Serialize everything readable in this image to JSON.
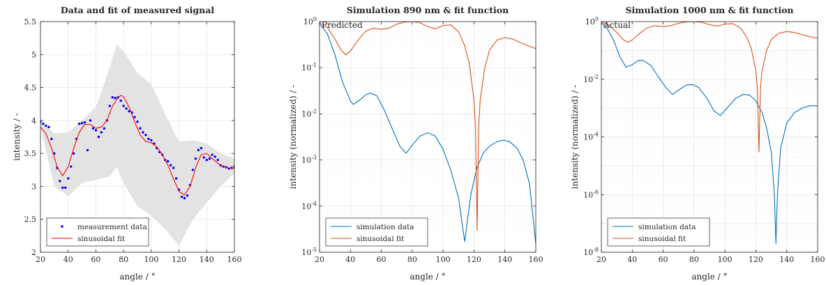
{
  "chart_data": [
    {
      "type": "scatter",
      "title": "Data and fit of measured signal",
      "xlabel": "angle / °",
      "ylabel": "intensity / -",
      "xlim": [
        20,
        160
      ],
      "ylim": [
        2,
        5.5
      ],
      "xticks": [
        "20",
        "40",
        "60",
        "80",
        "100",
        "120",
        "140",
        "160"
      ],
      "yticks": [
        "2",
        "2.5",
        "3",
        "3.5",
        "4",
        "4.5",
        "5",
        "5.5"
      ],
      "grid": true,
      "legend_position": "bottom-left",
      "series": [
        {
          "name": "measurement data",
          "marker": "dot",
          "color": "#0000ff",
          "x": [
            20,
            22,
            24,
            26,
            28,
            30,
            32,
            34,
            36,
            38,
            40,
            42,
            44,
            46,
            48,
            50,
            52,
            54,
            56,
            58,
            60,
            62,
            64,
            66,
            68,
            70,
            72,
            74,
            76,
            78,
            80,
            82,
            84,
            86,
            88,
            90,
            92,
            94,
            96,
            98,
            100,
            102,
            104,
            106,
            108,
            110,
            112,
            114,
            116,
            118,
            120,
            122,
            124,
            126,
            128,
            130,
            132,
            134,
            136,
            138,
            140,
            142,
            144,
            146,
            148,
            150,
            152,
            154,
            156,
            158,
            160
          ],
          "y": [
            3.98,
            3.95,
            3.92,
            3.9,
            3.72,
            3.5,
            3.28,
            3.08,
            2.98,
            2.98,
            3.12,
            3.3,
            3.5,
            3.72,
            3.95,
            3.96,
            3.97,
            3.55,
            4.0,
            3.88,
            3.85,
            3.75,
            3.82,
            3.88,
            4.0,
            4.22,
            4.35,
            4.34,
            4.35,
            4.3,
            4.22,
            4.18,
            4.14,
            4.12,
            4.05,
            3.98,
            3.88,
            3.82,
            3.78,
            3.72,
            3.7,
            3.65,
            3.58,
            3.52,
            3.48,
            3.4,
            3.38,
            3.32,
            3.28,
            3.12,
            2.95,
            2.84,
            2.82,
            2.86,
            3.02,
            3.25,
            3.42,
            3.55,
            3.58,
            3.44,
            3.4,
            3.42,
            3.48,
            3.45,
            3.4,
            3.32,
            3.3,
            3.29,
            3.27,
            3.28,
            3.3
          ]
        },
        {
          "name": "sinusoidal fit",
          "color": "#ff0000",
          "x": [
            20,
            24,
            28,
            32,
            36,
            40,
            44,
            48,
            52,
            56,
            60,
            64,
            68,
            72,
            76,
            78,
            80,
            84,
            88,
            92,
            96,
            100,
            104,
            108,
            112,
            116,
            120,
            124,
            128,
            132,
            136,
            140,
            144,
            148,
            152,
            156,
            160
          ],
          "y": [
            3.9,
            3.8,
            3.58,
            3.3,
            3.16,
            3.3,
            3.58,
            3.82,
            3.94,
            3.94,
            3.88,
            3.9,
            4.0,
            4.22,
            4.35,
            4.38,
            4.36,
            4.2,
            3.98,
            3.78,
            3.68,
            3.66,
            3.6,
            3.48,
            3.32,
            3.12,
            2.92,
            2.87,
            3.0,
            3.28,
            3.48,
            3.5,
            3.42,
            3.35,
            3.3,
            3.28,
            3.27
          ]
        }
      ],
      "band": {
        "color": "#e3e3e3",
        "x": [
          20,
          30,
          40,
          50,
          60,
          70,
          75,
          80,
          90,
          100,
          110,
          120,
          130,
          140,
          150,
          160
        ],
        "upper": [
          4.0,
          3.8,
          3.82,
          4.0,
          4.2,
          4.8,
          5.15,
          5.05,
          4.72,
          4.55,
          4.1,
          3.68,
          3.7,
          3.65,
          3.5,
          3.42
        ],
        "lower": [
          3.9,
          3.0,
          2.85,
          3.05,
          3.1,
          3.15,
          3.3,
          3.05,
          2.7,
          2.55,
          2.35,
          2.1,
          2.5,
          2.75,
          3.0,
          3.2
        ]
      }
    },
    {
      "type": "line",
      "title": "Simulation 890 nm & fit function",
      "annotation": "Predicted",
      "xlabel": "angle / °",
      "ylabel": "intensity (normalized) / -",
      "yscale": "log",
      "xlim": [
        20,
        160
      ],
      "ylim": [
        1e-05,
        1
      ],
      "xticks": [
        "20",
        "40",
        "60",
        "80",
        "100",
        "120",
        "140",
        "160"
      ],
      "ytick_exponents": [
        "-5",
        "-4",
        "-3",
        "-2",
        "-1",
        "0"
      ],
      "grid": true,
      "legend_position": "bottom-left",
      "series": [
        {
          "name": "simulation data",
          "color": "#0072bd",
          "x": [
            20,
            25,
            30,
            35,
            40,
            42,
            46,
            50,
            53,
            57,
            62,
            67,
            72,
            76,
            80,
            85,
            90,
            95,
            100,
            105,
            110,
            114,
            118,
            122,
            126,
            130,
            135,
            139,
            143,
            148,
            152,
            156,
            160
          ],
          "y": [
            0.9,
            0.55,
            0.19,
            0.048,
            0.019,
            0.016,
            0.02,
            0.026,
            0.028,
            0.025,
            0.012,
            0.0048,
            0.002,
            0.0014,
            0.0021,
            0.0033,
            0.0039,
            0.0033,
            0.0017,
            0.0006,
            0.00015,
            1.7e-05,
            0.00018,
            0.0007,
            0.0014,
            0.002,
            0.0025,
            0.0027,
            0.0025,
            0.0018,
            0.00095,
            0.0003,
            1.5e-05
          ]
        },
        {
          "name": "sinusoidal fit",
          "color": "#d95319",
          "x": [
            20,
            25,
            30,
            34,
            37,
            40,
            45,
            50,
            55,
            60,
            65,
            70,
            75,
            80,
            85,
            90,
            95,
            100,
            105,
            110,
            114,
            117,
            120,
            121,
            122,
            123,
            124,
            127,
            130,
            135,
            140,
            145,
            150,
            155,
            160
          ],
          "y": [
            0.95,
            0.75,
            0.42,
            0.24,
            0.19,
            0.23,
            0.4,
            0.62,
            0.72,
            0.68,
            0.72,
            0.88,
            0.98,
            1.0,
            0.95,
            0.78,
            0.7,
            0.82,
            0.85,
            0.6,
            0.3,
            0.12,
            0.02,
            0.005,
            3e-05,
            0.005,
            0.02,
            0.1,
            0.24,
            0.4,
            0.45,
            0.42,
            0.35,
            0.3,
            0.26
          ]
        }
      ]
    },
    {
      "type": "line",
      "title": "Simulation 1000 nm & fit function",
      "annotation": "Actual",
      "xlabel": "angle / °",
      "ylabel": "intensity (normalized) / -",
      "yscale": "log",
      "xlim": [
        20,
        160
      ],
      "ylim": [
        1e-08,
        1
      ],
      "xticks": [
        "20",
        "40",
        "60",
        "80",
        "100",
        "120",
        "140",
        "160"
      ],
      "ytick_exponents": [
        "-8",
        "-6",
        "-4",
        "-2",
        "0"
      ],
      "grid": true,
      "legend_position": "bottom-left",
      "series": [
        {
          "name": "simulation data",
          "color": "#0072bd",
          "x": [
            20,
            24,
            28,
            32,
            36,
            40,
            44,
            47,
            52,
            57,
            62,
            66,
            70,
            75,
            79,
            83,
            88,
            93,
            97,
            102,
            107,
            112,
            116,
            120,
            124,
            127,
            130,
            132,
            133,
            134,
            136,
            140,
            145,
            150,
            155,
            160
          ],
          "y": [
            0.9,
            0.55,
            0.22,
            0.06,
            0.026,
            0.032,
            0.045,
            0.045,
            0.03,
            0.012,
            0.005,
            0.003,
            0.0042,
            0.0063,
            0.0066,
            0.0052,
            0.0023,
            0.0008,
            0.00055,
            0.0011,
            0.0022,
            0.003,
            0.0028,
            0.0018,
            0.0007,
            0.0002,
            3e-05,
            1e-06,
            2e-08,
            1e-06,
            4e-05,
            0.0003,
            0.0007,
            0.001,
            0.0012,
            0.0012
          ]
        },
        {
          "name": "sinusoidal fit",
          "color": "#d95319",
          "x": [
            20,
            25,
            30,
            34,
            37,
            40,
            45,
            50,
            55,
            60,
            65,
            70,
            75,
            80,
            85,
            90,
            95,
            100,
            105,
            110,
            114,
            117,
            120,
            121,
            122,
            123,
            124,
            127,
            130,
            135,
            140,
            145,
            150,
            155,
            160
          ],
          "y": [
            0.95,
            0.75,
            0.42,
            0.24,
            0.19,
            0.23,
            0.4,
            0.62,
            0.72,
            0.68,
            0.72,
            0.88,
            0.98,
            1.0,
            0.95,
            0.78,
            0.7,
            0.82,
            0.85,
            0.6,
            0.3,
            0.12,
            0.02,
            0.005,
            3e-05,
            0.005,
            0.02,
            0.1,
            0.24,
            0.4,
            0.45,
            0.42,
            0.35,
            0.3,
            0.26
          ]
        }
      ]
    }
  ]
}
